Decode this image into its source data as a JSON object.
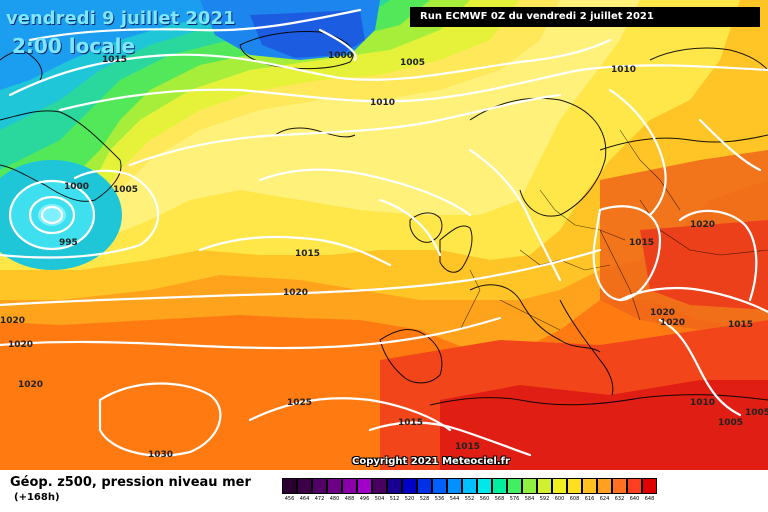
{
  "header": {
    "date": "vendredi 9 juillet 2021",
    "time": "2:00 locale",
    "run": "Run ECMWF 0Z du vendredi 2 juillet 2021"
  },
  "footer": {
    "title": "Géop. z500, pression niveau mer",
    "lead": "(+168h)",
    "copyright": "Copyright 2021 Meteociel.fr"
  },
  "isobar_labels": [
    "1000",
    "1015",
    "1005",
    "1010",
    "1010",
    "1000",
    "1005",
    "995",
    "1015",
    "1020",
    "1015",
    "1020",
    "1020",
    "1020",
    "1020",
    "1015",
    "1020",
    "1020",
    "1025",
    "1030",
    "1015",
    "1015",
    "1010",
    "1005",
    "1005"
  ],
  "legend": {
    "values": [
      "456",
      "464",
      "472",
      "480",
      "488",
      "496",
      "504",
      "512",
      "520",
      "528",
      "536",
      "544",
      "552",
      "560",
      "568",
      "576",
      "584",
      "592",
      "600",
      "608",
      "616",
      "624",
      "632",
      "640",
      "648"
    ],
    "colors": [
      "#2a0030",
      "#3b0048",
      "#520066",
      "#6e0088",
      "#8a00a8",
      "#a000c8",
      "#4a0060",
      "#1a0090",
      "#0000c8",
      "#0030e8",
      "#0060ff",
      "#0090ff",
      "#00c0ff",
      "#00e8e8",
      "#00f0a0",
      "#40f060",
      "#90f040",
      "#d0f030",
      "#f0f020",
      "#ffe020",
      "#ffc020",
      "#ffa020",
      "#ff7020",
      "#ff4020",
      "#e00000"
    ]
  },
  "colors": {
    "low_center": "#46e0ff",
    "high_zone": "#e01e14",
    "ridge": "#ffe86a"
  }
}
